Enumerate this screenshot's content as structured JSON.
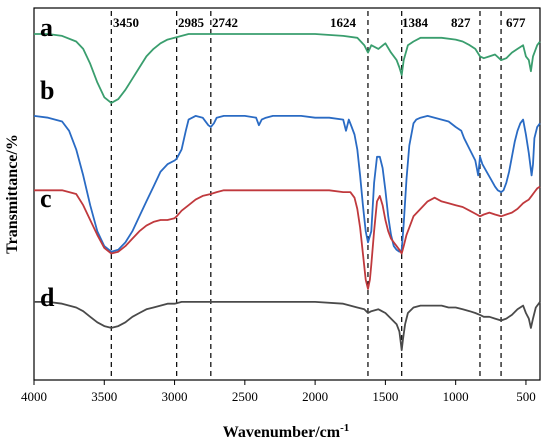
{
  "chart_data": {
    "type": "line",
    "title": "",
    "xlabel": "Wavenumber/cm",
    "xlabel_superscript": "-1",
    "ylabel": "Transmittance/%",
    "xlim": [
      4000,
      400
    ],
    "x_reversed": true,
    "y_tick_labels": false,
    "xticks": [
      4000,
      3500,
      3000,
      2500,
      2000,
      1500,
      1000,
      500
    ],
    "reference_lines": [
      3450,
      2985,
      2742,
      1624,
      1384,
      827,
      677
    ],
    "series": [
      {
        "name": "a",
        "color": "#3a9e6e",
        "x": [
          4000,
          3900,
          3800,
          3700,
          3650,
          3600,
          3550,
          3500,
          3450,
          3400,
          3350,
          3300,
          3250,
          3200,
          3150,
          3100,
          3050,
          3000,
          2950,
          2900,
          2800,
          2700,
          2600,
          2400,
          2200,
          2000,
          1800,
          1700,
          1650,
          1624,
          1600,
          1550,
          1500,
          1460,
          1420,
          1400,
          1384,
          1370,
          1340,
          1300,
          1250,
          1200,
          1100,
          1000,
          950,
          900,
          860,
          827,
          800,
          760,
          720,
          677,
          640,
          600,
          560,
          520,
          500,
          480,
          465,
          450,
          420,
          400
        ],
        "y": [
          93,
          93,
          92.5,
          91,
          89,
          85,
          80,
          76,
          74.5,
          75.5,
          78,
          81,
          84,
          87,
          89,
          90.5,
          91.5,
          92,
          92.5,
          93,
          93,
          93,
          93,
          93,
          93,
          93,
          92.5,
          92,
          90,
          88,
          90,
          89,
          90.5,
          88,
          86,
          84,
          82,
          86,
          90,
          91,
          92,
          92,
          92,
          91.5,
          91,
          90,
          89,
          87,
          86.5,
          87,
          87.5,
          86,
          86.5,
          88,
          89,
          90,
          87,
          86,
          83,
          87,
          90,
          91
        ]
      },
      {
        "name": "b",
        "color": "#2a6bc4",
        "x": [
          4000,
          3900,
          3800,
          3750,
          3700,
          3650,
          3600,
          3550,
          3500,
          3450,
          3400,
          3350,
          3300,
          3250,
          3200,
          3150,
          3100,
          3050,
          3000,
          2985,
          2950,
          2920,
          2900,
          2850,
          2800,
          2760,
          2742,
          2720,
          2700,
          2650,
          2600,
          2500,
          2420,
          2400,
          2380,
          2350,
          2300,
          2200,
          2100,
          2000,
          1900,
          1800,
          1780,
          1760,
          1740,
          1720,
          1700,
          1680,
          1660,
          1640,
          1624,
          1600,
          1580,
          1560,
          1540,
          1520,
          1500,
          1480,
          1460,
          1440,
          1420,
          1400,
          1384,
          1370,
          1350,
          1330,
          1300,
          1280,
          1250,
          1200,
          1150,
          1100,
          1050,
          1000,
          960,
          940,
          900,
          860,
          840,
          827,
          810,
          780,
          750,
          720,
          700,
          677,
          660,
          640,
          620,
          600,
          580,
          560,
          540,
          520,
          500,
          480,
          470,
          460,
          450,
          440,
          420,
          400
        ],
        "y": [
          71,
          70.5,
          69.5,
          67,
          62,
          55,
          47,
          40,
          36,
          34.5,
          35,
          37,
          40,
          44,
          48,
          52,
          56,
          58,
          59,
          59.5,
          62,
          67,
          70,
          71,
          70.5,
          68.5,
          68,
          69,
          70.5,
          71,
          71,
          71,
          70.5,
          68.5,
          70,
          70.5,
          71,
          71,
          71,
          70.5,
          70.5,
          70,
          67,
          70,
          68,
          66,
          62,
          55,
          47,
          40,
          37,
          40,
          53,
          60,
          60,
          57,
          51,
          44,
          39,
          36,
          35,
          34.5,
          35,
          42,
          54,
          63,
          69,
          70,
          70.5,
          71,
          70.5,
          70,
          69.5,
          68,
          67,
          65,
          62,
          59,
          55,
          60,
          58,
          56,
          54,
          52,
          51,
          50.5,
          51,
          53,
          56,
          60,
          64,
          67,
          69,
          70,
          66,
          61,
          58,
          55,
          58,
          65,
          68,
          69
        ]
      },
      {
        "name": "c",
        "color": "#c0393d",
        "x": [
          4000,
          3900,
          3800,
          3700,
          3650,
          3600,
          3550,
          3500,
          3450,
          3400,
          3350,
          3300,
          3250,
          3200,
          3150,
          3100,
          3050,
          3000,
          2985,
          2950,
          2900,
          2850,
          2800,
          2742,
          2700,
          2650,
          2600,
          2400,
          2200,
          2000,
          1900,
          1800,
          1750,
          1720,
          1700,
          1680,
          1660,
          1640,
          1624,
          1610,
          1600,
          1580,
          1560,
          1540,
          1520,
          1500,
          1480,
          1460,
          1440,
          1420,
          1400,
          1384,
          1370,
          1350,
          1320,
          1300,
          1250,
          1200,
          1150,
          1100,
          1050,
          1000,
          950,
          900,
          850,
          827,
          800,
          760,
          720,
          677,
          640,
          600,
          560,
          520,
          500,
          480,
          460,
          440,
          420,
          400
        ],
        "y": [
          51,
          51,
          51,
          50,
          47,
          43,
          39,
          35.5,
          34,
          34.5,
          36,
          38,
          40,
          41.5,
          42.5,
          43,
          43,
          43.5,
          44,
          45.5,
          47,
          48.5,
          49.5,
          50,
          50.5,
          51,
          51,
          51,
          51,
          51,
          51,
          50.5,
          50.5,
          49,
          46,
          41,
          34,
          27,
          24.5,
          27,
          31,
          40,
          48,
          49.5,
          47,
          43,
          40,
          38,
          37,
          36,
          35,
          34,
          36,
          39,
          42,
          44,
          46,
          48,
          49,
          48,
          47.5,
          47,
          46.5,
          45.5,
          44.5,
          44,
          44.5,
          45,
          44.5,
          44,
          44.5,
          45,
          46,
          47.5,
          48,
          48.5,
          49.5,
          50.5,
          51.5,
          52
        ]
      },
      {
        "name": "d",
        "color": "#4a4a4a",
        "x": [
          4000,
          3900,
          3800,
          3700,
          3650,
          3600,
          3550,
          3500,
          3450,
          3400,
          3350,
          3300,
          3250,
          3200,
          3150,
          3100,
          3050,
          3000,
          2950,
          2900,
          2800,
          2700,
          2600,
          2400,
          2200,
          2000,
          1800,
          1750,
          1700,
          1650,
          1624,
          1600,
          1550,
          1500,
          1460,
          1420,
          1400,
          1390,
          1384,
          1375,
          1360,
          1340,
          1300,
          1250,
          1200,
          1150,
          1100,
          1050,
          1000,
          950,
          900,
          860,
          827,
          800,
          760,
          720,
          677,
          640,
          600,
          560,
          520,
          500,
          480,
          465,
          450,
          430,
          400
        ],
        "y": [
          21,
          21,
          20.5,
          19.5,
          18.5,
          17,
          15.5,
          14.5,
          14,
          14.5,
          15.5,
          17,
          18,
          19,
          19.5,
          20,
          20.5,
          20.5,
          21,
          21,
          21,
          21,
          21,
          21,
          21,
          21,
          20.5,
          20,
          19.5,
          19,
          18,
          18.5,
          19,
          18,
          16.5,
          15,
          13,
          10,
          8,
          11,
          15,
          18,
          19.5,
          20,
          20,
          20,
          20,
          19.5,
          19.5,
          19,
          18.5,
          18,
          17.5,
          17,
          17,
          16.5,
          16,
          16.5,
          17.5,
          19,
          20,
          18,
          16.5,
          14,
          16.5,
          19.5,
          21
        ]
      }
    ]
  },
  "trace_labels": [
    "a",
    "b",
    "c",
    "d"
  ],
  "peak_labels": [
    "3450",
    "2985",
    "2742",
    "1624",
    "1384",
    "827",
    "677"
  ]
}
